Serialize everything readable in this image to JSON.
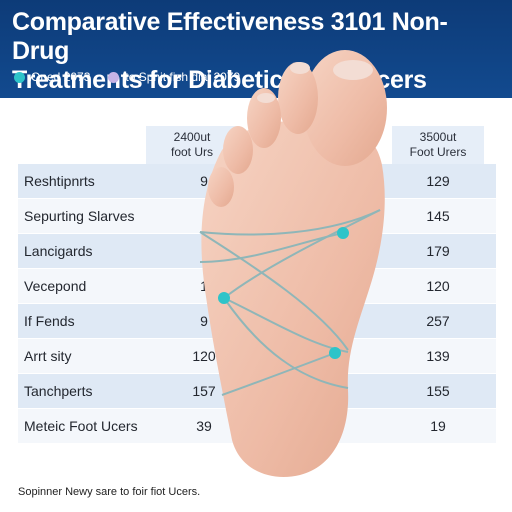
{
  "header": {
    "title_line1": "Comparative Effectiveness 3101 Non-Drug",
    "title_line2": "Treatments for Diabetic Foot Urcers"
  },
  "legend": [
    {
      "label": "Oned 2073",
      "color": "#2ec4c9"
    },
    {
      "label": "to Spnit fish dial 2079",
      "color": "#c6b3e6"
    }
  ],
  "table": {
    "col1_header": [
      "2400ut",
      "foot Urs"
    ],
    "col2_header": [
      "3500ut",
      "Foot Urers"
    ],
    "rows": [
      {
        "label": "Reshtipnrts",
        "v1": "9",
        "v2": "129"
      },
      {
        "label": "Sepurting Slarves",
        "v1": "",
        "v2": "145"
      },
      {
        "label": "Lancigards",
        "v1": "",
        "v2": "179"
      },
      {
        "label": "Vecepond",
        "v1": "1",
        "v2": "120"
      },
      {
        "label": "If Fends",
        "v1": "9",
        "v2": "257"
      },
      {
        "label": "Arrt sity",
        "v1": "120",
        "v2": "139"
      },
      {
        "label": "Tanchperts",
        "v1": "157",
        "v2": "155"
      },
      {
        "label": "Meteic Foot Ucers",
        "v1": "39",
        "v2": "19"
      }
    ]
  },
  "footnote": "Sopinner Newy sare to foir fiot Ucers."
}
